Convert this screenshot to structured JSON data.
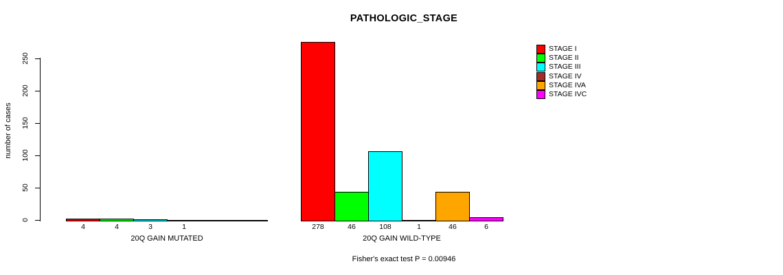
{
  "title": "PATHOLOGIC_STAGE",
  "y_axis": {
    "label": "number of cases"
  },
  "footer_note": "Fisher's exact test P = 0.00946",
  "chart_data": {
    "type": "bar",
    "title": "PATHOLOGIC_STAGE",
    "xlabel": "",
    "ylabel": "number of cases",
    "ylim": [
      0,
      278
    ],
    "yticks": [
      0,
      50,
      100,
      150,
      200,
      250
    ],
    "grid": false,
    "legend_position": "right",
    "series_labels": [
      "STAGE I",
      "STAGE II",
      "STAGE III",
      "STAGE IV",
      "STAGE IVA",
      "STAGE IVC"
    ],
    "colors": [
      "#FF0000",
      "#00FF00",
      "#00FFFF",
      "#A52A2A",
      "#FFA500",
      "#FF00FF"
    ],
    "groups": [
      {
        "label": "20Q GAIN MUTATED",
        "values": [
          4,
          4,
          3,
          1,
          0,
          0
        ]
      },
      {
        "label": "20Q GAIN WILD-TYPE",
        "values": [
          278,
          46,
          108,
          1,
          46,
          6
        ]
      }
    ],
    "bar_value_labels_shown_when": "value > 0",
    "annotation": "Fisher's exact test P = 0.00946"
  }
}
